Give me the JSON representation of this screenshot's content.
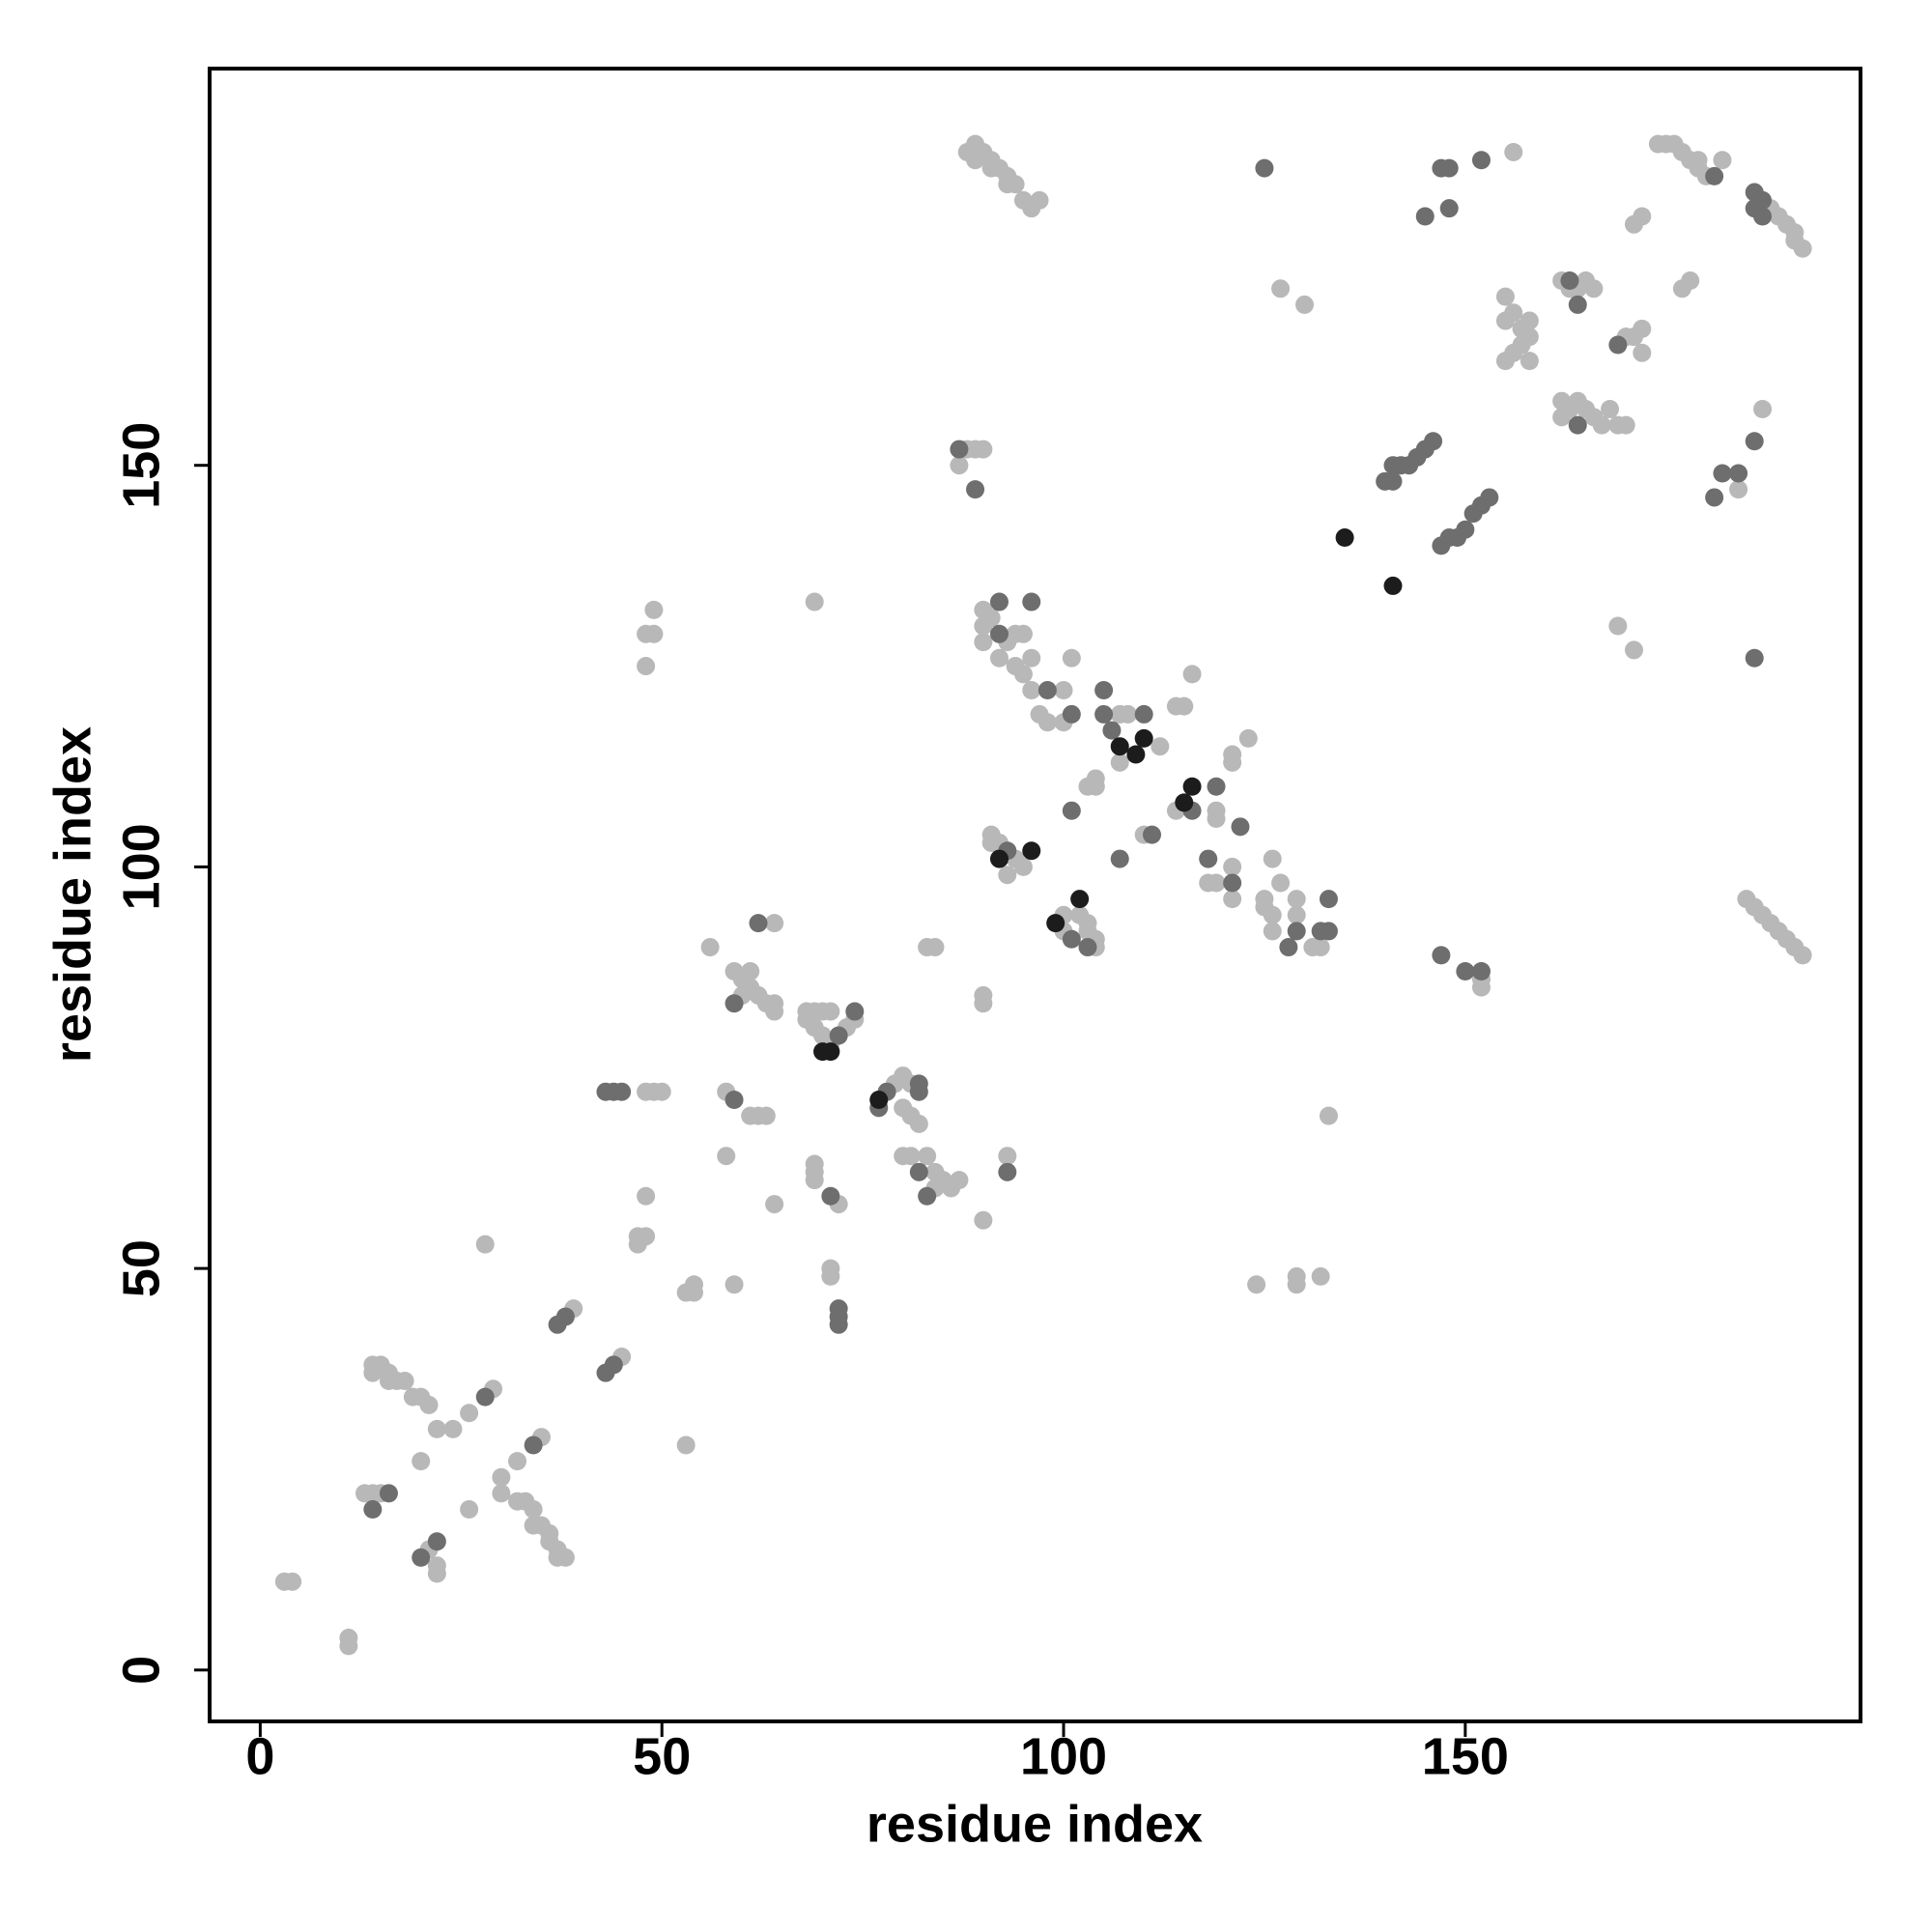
{
  "chart_data": {
    "type": "scatter",
    "xlabel": "residue index",
    "ylabel": "residue index",
    "xlim": [
      -6.3,
      199.2
    ],
    "ylim": [
      -6.4,
      199.4
    ],
    "xticks": [
      0,
      50,
      100,
      150
    ],
    "yticks": [
      0,
      50,
      100,
      150
    ],
    "grid": false,
    "series": [
      {
        "color": "#b8b8b8",
        "x": [
          3,
          4,
          11,
          11,
          13,
          14,
          15,
          14,
          15,
          16,
          17,
          18,
          19,
          20,
          21,
          14,
          16,
          21,
          22,
          22,
          20,
          22,
          24,
          26,
          29,
          26,
          30,
          30,
          32,
          35,
          32,
          33,
          34,
          34,
          35,
          36,
          36,
          37,
          37,
          38,
          28,
          39,
          45,
          48,
          49,
          50,
          47,
          47,
          48,
          48,
          53,
          54,
          54,
          53,
          56,
          58,
          58,
          59,
          59,
          60,
          61,
          60,
          61,
          62,
          63,
          64,
          64,
          64,
          61,
          62,
          63,
          64,
          68,
          69,
          70,
          71,
          68,
          69,
          70,
          71,
          73,
          74,
          69,
          69,
          69,
          72,
          71,
          71,
          69,
          79,
          80,
          81,
          80,
          81,
          82,
          80,
          81,
          83,
          84,
          85,
          86,
          87,
          84,
          83,
          84,
          90,
          90,
          90,
          93,
          88,
          89,
          90,
          87,
          88,
          89,
          90,
          91,
          92,
          93,
          94,
          95,
          96,
          97,
          89,
          91,
          93,
          48,
          48,
          49,
          49,
          90,
          90,
          90,
          91,
          92,
          93,
          94,
          95,
          96,
          94,
          95,
          96,
          97,
          98,
          100,
          101,
          100,
          103,
          104,
          104,
          107,
          108,
          107,
          110,
          112,
          114,
          115,
          116,
          114,
          119,
          119,
          118,
          119,
          121,
          121,
          121,
          123,
          121,
          125,
          125,
          126,
          126,
          127,
          126,
          129,
          129,
          131,
          132,
          91,
          91,
          92,
          93,
          94,
          95,
          100,
          100,
          102,
          103,
          103,
          104,
          104,
          124,
          129,
          129,
          132,
          133,
          127,
          130,
          156,
          152,
          152,
          155,
          155,
          156,
          157,
          158,
          155,
          156,
          157,
          158,
          158,
          162,
          163,
          164,
          165,
          166,
          162,
          162,
          163,
          164,
          165,
          166,
          167,
          168,
          169,
          170,
          170,
          171,
          172,
          172,
          169,
          171,
          171,
          172,
          174,
          175,
          176,
          177,
          178,
          179,
          180,
          182,
          179,
          177,
          178,
          184,
          187,
          188,
          189,
          190,
          191,
          191,
          192,
          185,
          186,
          187,
          188,
          189,
          190,
          191,
          192
        ],
        "values": [
          11,
          11,
          3,
          4,
          22,
          22,
          22,
          38,
          38,
          37,
          36,
          36,
          34,
          34,
          33,
          37,
          36,
          15,
          13,
          12,
          26,
          30,
          30,
          32,
          35,
          20,
          22,
          24,
          26,
          29,
          21,
          21,
          20,
          18,
          18,
          17,
          16,
          15,
          14,
          14,
          53,
          45,
          39,
          72,
          72,
          72,
          53,
          54,
          54,
          59,
          47,
          48,
          47,
          28,
          90,
          64,
          72,
          48,
          87,
          86,
          87,
          84,
          85,
          84,
          83,
          82,
          83,
          93,
          69,
          69,
          69,
          58,
          82,
          82,
          82,
          82,
          81,
          80,
          79,
          78,
          80,
          81,
          63,
          61,
          62,
          58,
          50,
          49,
          133,
          73,
          74,
          73,
          70,
          69,
          68,
          64,
          64,
          64,
          62,
          61,
          60,
          61,
          60,
          90,
          90,
          56,
          83,
          84,
          64,
          152,
          152,
          152,
          150,
          189,
          190,
          189,
          188,
          187,
          186,
          185,
          183,
          182,
          183,
          188,
          187,
          185,
          125,
          129,
          129,
          132,
          132,
          130,
          128,
          131,
          126,
          128,
          129,
          129,
          126,
          125,
          124,
          122,
          119,
          118,
          122,
          126,
          118,
          110,
          111,
          110,
          119,
          119,
          113,
          104,
          115,
          120,
          120,
          124,
          107,
          107,
          106,
          98,
          98,
          100,
          113,
          114,
          116,
          96,
          96,
          95,
          94,
          92,
          98,
          101,
          94,
          96,
          90,
          90,
          103,
          104,
          103,
          99,
          101,
          100,
          94,
          92,
          94,
          93,
          92,
          91,
          90,
          48,
          48,
          49,
          49,
          69,
          172,
          170,
          189,
          85,
          86,
          171,
          168,
          169,
          167,
          166,
          163,
          164,
          165,
          163,
          168,
          173,
          172,
          172,
          173,
          172,
          158,
          156,
          157,
          158,
          157,
          156,
          155,
          157,
          155,
          155,
          166,
          166,
          164,
          167,
          130,
          127,
          180,
          181,
          190,
          190,
          190,
          189,
          188,
          187,
          186,
          188,
          188,
          172,
          173,
          147,
          157,
          182,
          181,
          180,
          179,
          178,
          177,
          96,
          95,
          94,
          93,
          92,
          91,
          90,
          89
        ]
      },
      {
        "color": "#6e6e6e",
        "x": [
          16,
          14,
          20,
          22,
          28,
          34,
          37,
          38,
          43,
          44,
          43,
          44,
          45,
          59,
          59,
          62,
          72,
          74,
          71,
          72,
          72,
          72,
          78,
          82,
          77,
          82,
          82,
          83,
          93,
          87,
          89,
          92,
          92,
          96,
          98,
          101,
          101,
          105,
          105,
          106,
          110,
          111,
          107,
          116,
          119,
          118,
          121,
          122,
          128,
          129,
          132,
          133,
          133,
          93,
          101,
          103,
          125,
          140,
          141,
          141,
          142,
          143,
          144,
          145,
          146,
          147,
          148,
          149,
          150,
          151,
          152,
          153,
          145,
          147,
          148,
          148,
          152,
          147,
          150,
          152,
          164,
          163,
          164,
          169,
          181,
          181,
          182,
          184,
          186,
          186,
          186,
          187,
          186,
          187
        ],
        "values": [
          22,
          20,
          14,
          16,
          34,
          28,
          43,
          44,
          37,
          38,
          72,
          72,
          72,
          71,
          83,
          93,
          79,
          82,
          59,
          44,
          45,
          43,
          72,
          73,
          70,
          72,
          62,
          59,
          62,
          152,
          147,
          133,
          129,
          133,
          122,
          119,
          107,
          122,
          119,
          117,
          119,
          104,
          101,
          107,
          110,
          101,
          98,
          105,
          90,
          92,
          92,
          92,
          96,
          102,
          91,
          90,
          187,
          148,
          148,
          150,
          150,
          150,
          151,
          152,
          153,
          140,
          141,
          141,
          142,
          144,
          145,
          146,
          181,
          187,
          187,
          182,
          188,
          89,
          87,
          87,
          170,
          173,
          155,
          165,
          186,
          146,
          149,
          149,
          153,
          126,
          184,
          183,
          182,
          181
        ]
      },
      {
        "color": "#1c1c1c",
        "x": [
          70,
          71,
          77,
          107,
          109,
          110,
          115,
          116,
          92,
          96,
          99,
          102,
          135,
          141
        ],
        "values": [
          77,
          77,
          71,
          115,
          114,
          116,
          108,
          110,
          101,
          102,
          93,
          96,
          141,
          135
        ]
      }
    ]
  }
}
